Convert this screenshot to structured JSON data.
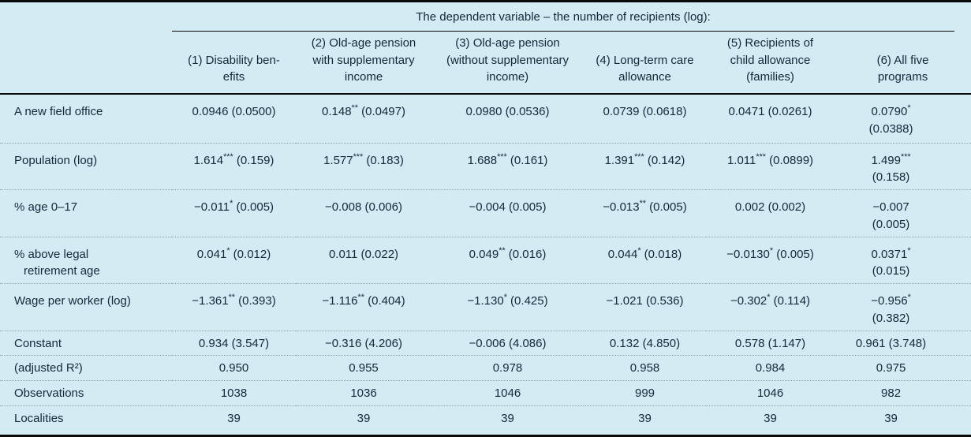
{
  "colors": {
    "table_background": "#d3ecf4",
    "text": "#13293a",
    "thick_rule": "#0a0a0a",
    "dotted_rule": "#8fa4ae"
  },
  "table": {
    "title": "The dependent variable – the number of recipients (log):",
    "columns": [
      [
        "(1) Disability ben-",
        "efits"
      ],
      [
        "(2) Old-age pension",
        "with supplementary",
        "income"
      ],
      [
        "(3) Old-age pension",
        "(without supplementary",
        "income)"
      ],
      [
        "(4) Long-term care",
        "allowance"
      ],
      [
        "(5) Recipients of",
        "child allowance",
        "(families)"
      ],
      [
        "(6) All five",
        "programs"
      ]
    ],
    "rows": [
      {
        "label": "A new field office",
        "cells": [
          "0.0946 (0.0500)",
          "0.148** (0.0497)",
          "0.0980 (0.0536)",
          "0.0739 (0.0618)",
          "0.0471 (0.0261)",
          [
            "0.0790*",
            "(0.0388)"
          ]
        ]
      },
      {
        "label": "Population (log)",
        "cells": [
          "1.614*** (0.159)",
          "1.577*** (0.183)",
          "1.688*** (0.161)",
          "1.391*** (0.142)",
          "1.011*** (0.0899)",
          [
            "1.499***",
            "(0.158)"
          ]
        ]
      },
      {
        "label": "% age 0–17",
        "cells": [
          "−0.011* (0.005)",
          "−0.008 (0.006)",
          "−0.004 (0.005)",
          "−0.013** (0.005)",
          "0.002 (0.002)",
          [
            "−0.007",
            "(0.005)"
          ]
        ]
      },
      {
        "label": [
          "% above legal",
          "retirement age"
        ],
        "cells": [
          "0.041* (0.012)",
          "0.011 (0.022)",
          "0.049** (0.016)",
          "0.044* (0.018)",
          "−0.0130* (0.005)",
          [
            "0.0371*",
            "(0.015)"
          ]
        ]
      },
      {
        "label": "Wage per worker (log)",
        "cells": [
          "−1.361** (0.393)",
          "−1.116** (0.404)",
          "−1.130* (0.425)",
          "−1.021 (0.536)",
          "−0.302* (0.114)",
          [
            "−0.956*",
            "(0.382)"
          ]
        ]
      },
      {
        "label": "Constant",
        "cells": [
          "0.934 (3.547)",
          "−0.316 (4.206)",
          "−0.006 (4.086)",
          "0.132 (4.850)",
          "0.578 (1.147)",
          "0.961 (3.748)"
        ]
      },
      {
        "label": "(adjusted R²)",
        "cells": [
          "0.950",
          "0.955",
          "0.978",
          "0.958",
          "0.984",
          "0.975"
        ]
      },
      {
        "label": "Observations",
        "cells": [
          "1038",
          "1036",
          "1046",
          "999",
          "1046",
          "982"
        ]
      },
      {
        "label": "Localities",
        "cells": [
          "39",
          "39",
          "39",
          "39",
          "39",
          "39"
        ]
      }
    ]
  }
}
